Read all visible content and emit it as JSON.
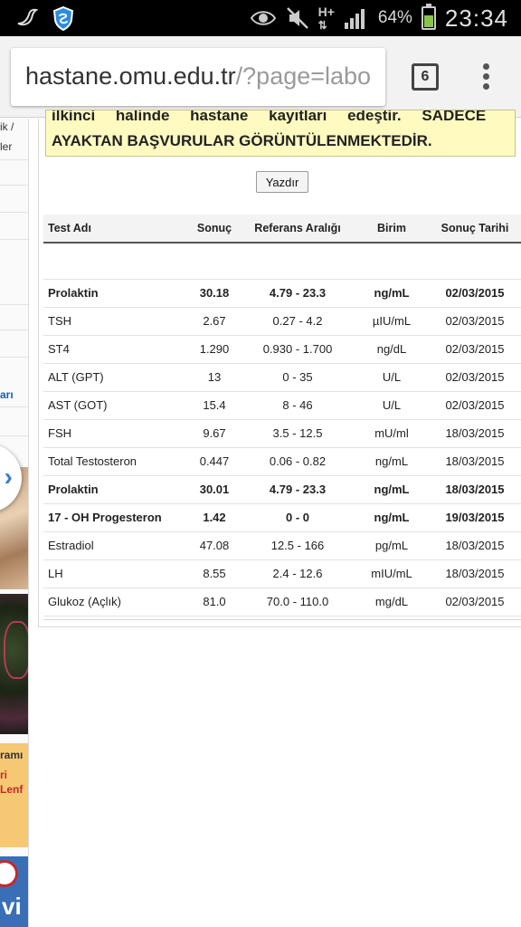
{
  "status_bar": {
    "battery_percent": "64%",
    "battery_level": 0.64,
    "time": "23:34",
    "network_label": "H+",
    "icons": [
      "bird-icon",
      "shield-icon",
      "eye-icon",
      "mute-icon",
      "data-arrows-icon",
      "signal-icon",
      "battery-icon"
    ]
  },
  "browser": {
    "url_host": "hastane.omu.edu.tr",
    "url_path": "/?page=labo",
    "tab_count": "6"
  },
  "sidebar": {
    "items": [
      {
        "text": "ik /"
      },
      {
        "text": "ler"
      },
      {
        "text": "arı"
      }
    ],
    "banner_text": [
      "ramı",
      "ri",
      "Lenf"
    ],
    "logo_text": "vi"
  },
  "notice": {
    "line1": "ilkinci halinde hastane kayıtları edeştir. SADECE",
    "line2": "AYAKTAN BAŞVURULAR GÖRÜNTÜLENMEKTEDİR."
  },
  "print_button": "Yazdır",
  "table": {
    "headers": [
      "Test Adı",
      "Sonuç",
      "Referans Aralığı",
      "Birim",
      "Sonuç Tarihi"
    ],
    "rows": [
      {
        "cells": [
          "Prolaktin",
          "30.18",
          "4.79 - 23.3",
          "ng/mL",
          "02/03/2015"
        ],
        "bold": true
      },
      {
        "cells": [
          "TSH",
          "2.67",
          "0.27 - 4.2",
          "µIU/mL",
          "02/03/2015"
        ],
        "bold": false
      },
      {
        "cells": [
          "ST4",
          "1.290",
          "0.930 - 1.700",
          "ng/dL",
          "02/03/2015"
        ],
        "bold": false
      },
      {
        "cells": [
          "ALT (GPT)",
          "13",
          "0 - 35",
          "U/L",
          "02/03/2015"
        ],
        "bold": false
      },
      {
        "cells": [
          "AST (GOT)",
          "15.4",
          "8 - 46",
          "U/L",
          "02/03/2015"
        ],
        "bold": false
      },
      {
        "cells": [
          "FSH",
          "9.67",
          "3.5 - 12.5",
          "mU/ml",
          "18/03/2015"
        ],
        "bold": false
      },
      {
        "cells": [
          "Total Testosteron",
          "0.447",
          "0.06 - 0.82",
          "ng/mL",
          "18/03/2015"
        ],
        "bold": false
      },
      {
        "cells": [
          "Prolaktin",
          "30.01",
          "4.79 - 23.3",
          "ng/mL",
          "18/03/2015"
        ],
        "bold": true
      },
      {
        "cells": [
          "17 - OH Progesteron",
          "1.42",
          "0 - 0",
          "ng/mL",
          "19/03/2015"
        ],
        "bold": true
      },
      {
        "cells": [
          "Estradiol",
          "47.08",
          "12.5 - 166",
          "pg/mL",
          "18/03/2015"
        ],
        "bold": false
      },
      {
        "cells": [
          "LH",
          "8.55",
          "2.4 - 12.6",
          "mIU/mL",
          "18/03/2015"
        ],
        "bold": false
      },
      {
        "cells": [
          "Glukoz (Açlık)",
          "81.0",
          "70.0 - 110.0",
          "mg/dL",
          "02/03/2015"
        ],
        "bold": false
      }
    ]
  },
  "colors": {
    "notice_bg": "#fffbc0",
    "link": "#1a5fb4",
    "battery": "#8bc34a"
  }
}
